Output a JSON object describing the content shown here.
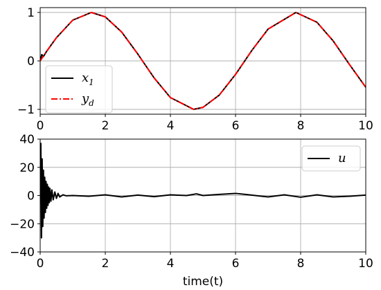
{
  "chart_data": [
    {
      "type": "line",
      "title": "",
      "xlabel": "",
      "ylabel": "",
      "xlim": [
        0,
        10
      ],
      "ylim": [
        -1.1,
        1.1
      ],
      "xticks": [
        0,
        2,
        4,
        6,
        8,
        10
      ],
      "yticks": [
        -1,
        0,
        1
      ],
      "grid": true,
      "legend_position": "lower-left",
      "x": [
        0,
        0.05,
        0.1,
        0.2,
        0.5,
        1,
        1.5708,
        2,
        2.5,
        3,
        3.1416,
        3.5,
        4,
        4.7124,
        5,
        5.5,
        6,
        6.2832,
        6.5,
        7,
        7.854,
        8.5,
        9,
        9.5,
        10
      ],
      "series": [
        {
          "name": "x",
          "name_sub": "1",
          "color": "#000000",
          "style": "solid",
          "values": [
            0,
            0.13,
            0.09,
            0.2,
            0.479,
            0.841,
            1,
            0.909,
            0.598,
            0.141,
            0,
            -0.351,
            -0.757,
            -1,
            -0.959,
            -0.706,
            -0.279,
            0,
            0.215,
            0.657,
            1,
            0.798,
            0.412,
            -0.075,
            -0.544
          ]
        },
        {
          "name": "y",
          "name_sub": "d",
          "color": "#ff0000",
          "style": "dashdot",
          "values": [
            0,
            0.05,
            0.1,
            0.199,
            0.479,
            0.841,
            1,
            0.909,
            0.598,
            0.141,
            0,
            -0.351,
            -0.757,
            -1,
            -0.959,
            -0.706,
            -0.279,
            0,
            0.215,
            0.657,
            1,
            0.798,
            0.412,
            -0.075,
            -0.544
          ]
        }
      ]
    },
    {
      "type": "line",
      "title": "",
      "xlabel": "time(t)",
      "ylabel": "",
      "xlim": [
        0,
        10
      ],
      "ylim": [
        -40,
        40
      ],
      "xticks": [
        0,
        2,
        4,
        6,
        8,
        10
      ],
      "yticks": [
        -40,
        -20,
        0,
        20,
        40
      ],
      "grid": true,
      "legend_position": "upper-right",
      "x": [
        0,
        0.02,
        0.04,
        0.06,
        0.08,
        0.1,
        0.12,
        0.14,
        0.16,
        0.18,
        0.2,
        0.22,
        0.24,
        0.26,
        0.28,
        0.3,
        0.33,
        0.36,
        0.4,
        0.45,
        0.5,
        0.55,
        0.6,
        0.7,
        0.8,
        1,
        1.5,
        2,
        2.5,
        3,
        3.5,
        4,
        4.5,
        4.8,
        5,
        5.5,
        6,
        6.3,
        7,
        7.5,
        8,
        8.5,
        9,
        9.5,
        10
      ],
      "series": [
        {
          "name": "u",
          "color": "#000000",
          "style": "solid",
          "values": [
            0,
            37,
            -30,
            26,
            -22,
            18,
            -16,
            13,
            -12,
            10,
            -9,
            8,
            -7,
            6,
            -5,
            5,
            -4,
            4,
            -3,
            2.5,
            -2,
            1.5,
            -1,
            0.5,
            -0.2,
            0,
            -0.5,
            0.5,
            -1,
            0.3,
            -0.8,
            0.5,
            0,
            1.2,
            0,
            0.8,
            1.5,
            0.8,
            -1,
            0.5,
            -1.2,
            0.5,
            -1,
            -0.5,
            0.3
          ]
        }
      ]
    }
  ]
}
